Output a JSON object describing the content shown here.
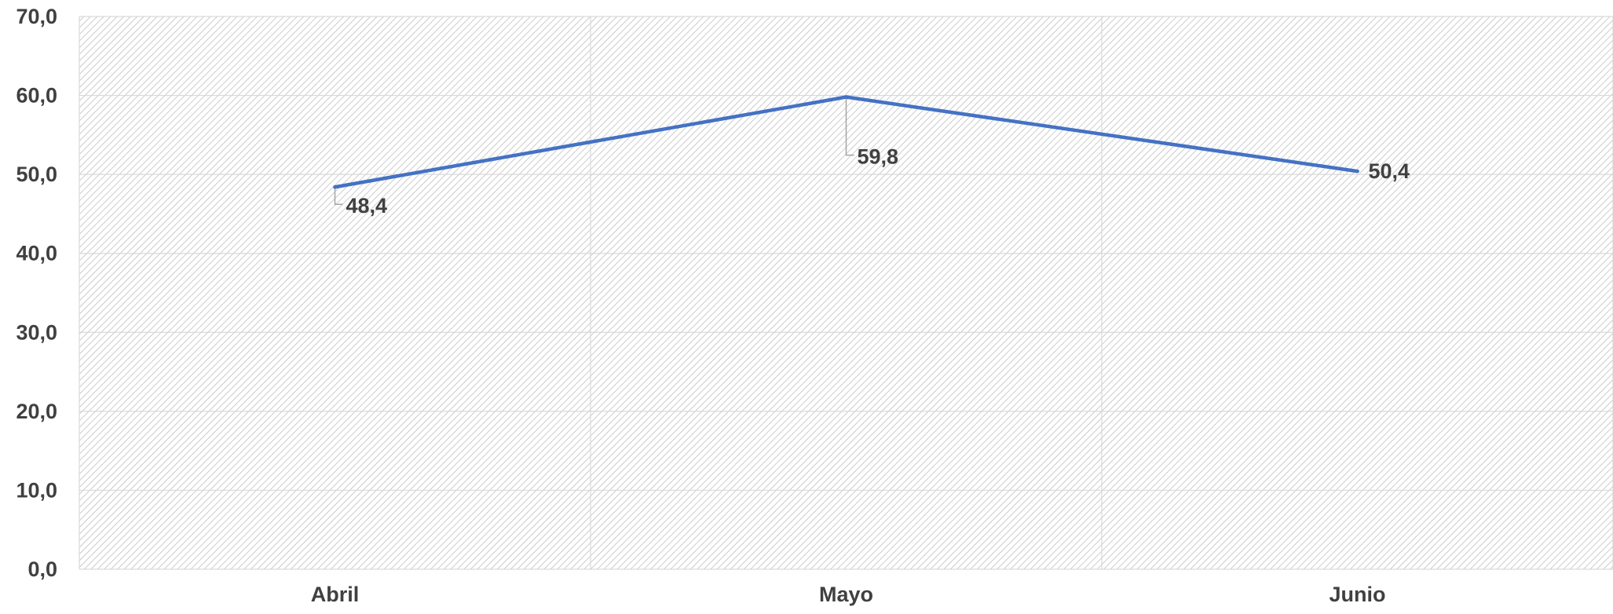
{
  "chart_data": {
    "type": "line",
    "categories": [
      "Abril",
      "Mayo",
      "Junio"
    ],
    "series": [
      {
        "values": [
          48.4,
          59.8,
          50.4
        ]
      }
    ],
    "data_labels": [
      "48,4",
      "59,8",
      "50,4"
    ],
    "yticks": [
      {
        "value": 0,
        "label": "0,0"
      },
      {
        "value": 10,
        "label": "10,0"
      },
      {
        "value": 20,
        "label": "20,0"
      },
      {
        "value": 30,
        "label": "30,0"
      },
      {
        "value": 40,
        "label": "40,0"
      },
      {
        "value": 50,
        "label": "50,0"
      },
      {
        "value": 60,
        "label": "60,0"
      },
      {
        "value": 70,
        "label": "70,0"
      }
    ],
    "ylim": [
      0,
      70
    ],
    "grid": true,
    "legend": "none",
    "title": "",
    "xlabel": "",
    "ylabel": "",
    "colors": {
      "line": "#4472C4",
      "grid": "#D9D9D9",
      "hatch": "#BFBFBF",
      "text": "#404040",
      "leader": "#A6A6A6"
    }
  }
}
